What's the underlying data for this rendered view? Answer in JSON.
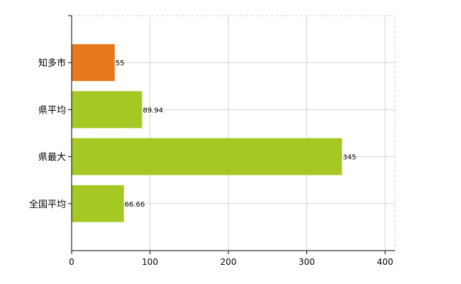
{
  "chart_data": {
    "type": "bar",
    "orientation": "horizontal",
    "categories": [
      "知多市",
      "県平均",
      "県最大",
      "全国平均"
    ],
    "values": [
      55,
      89.94,
      345,
      66.66
    ],
    "value_labels": [
      "55",
      "89.94",
      "345",
      "66.66"
    ],
    "colors": [
      "#e8781e",
      "#a6c824",
      "#a6c824",
      "#a6c824"
    ],
    "xlim": [
      0,
      400
    ],
    "xticks": [
      0,
      100,
      200,
      300,
      400
    ],
    "grid": true,
    "title": "",
    "xlabel": "",
    "ylabel": ""
  }
}
